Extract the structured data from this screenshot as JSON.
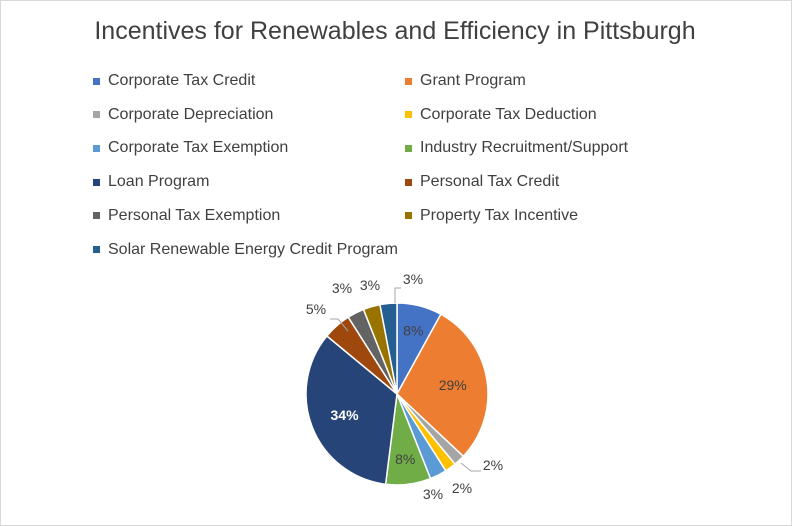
{
  "chart_data": {
    "type": "pie",
    "title": "Incentives for Renewables and Efficiency in Pittsburgh",
    "legend_position": "top",
    "slices": [
      {
        "name": "Corporate Tax Credit",
        "value": 8,
        "label": "8%",
        "color": "#4472C4"
      },
      {
        "name": "Grant Program",
        "value": 29,
        "label": "29%",
        "color": "#ED7D31"
      },
      {
        "name": "Corporate Depreciation",
        "value": 2,
        "label": "2%",
        "color": "#A5A5A5"
      },
      {
        "name": "Corporate Tax Deduction",
        "value": 2,
        "label": "2%",
        "color": "#FFC000"
      },
      {
        "name": "Corporate Tax Exemption",
        "value": 3,
        "label": "3%",
        "color": "#5B9BD5"
      },
      {
        "name": "Industry Recruitment/Support",
        "value": 8,
        "label": "8%",
        "color": "#70AD47"
      },
      {
        "name": "Loan Program",
        "value": 34,
        "label": "34%",
        "color": "#264478"
      },
      {
        "name": "Personal Tax Credit",
        "value": 5,
        "label": "5%",
        "color": "#9E480E"
      },
      {
        "name": "Personal Tax Exemption",
        "value": 3,
        "label": "3%",
        "color": "#636363"
      },
      {
        "name": "Property Tax Incentive",
        "value": 3,
        "label": "3%",
        "color": "#997300"
      },
      {
        "name": "Solar Renewable Energy Credit Program",
        "value": 3,
        "label": "3%",
        "color": "#255E91"
      }
    ]
  }
}
